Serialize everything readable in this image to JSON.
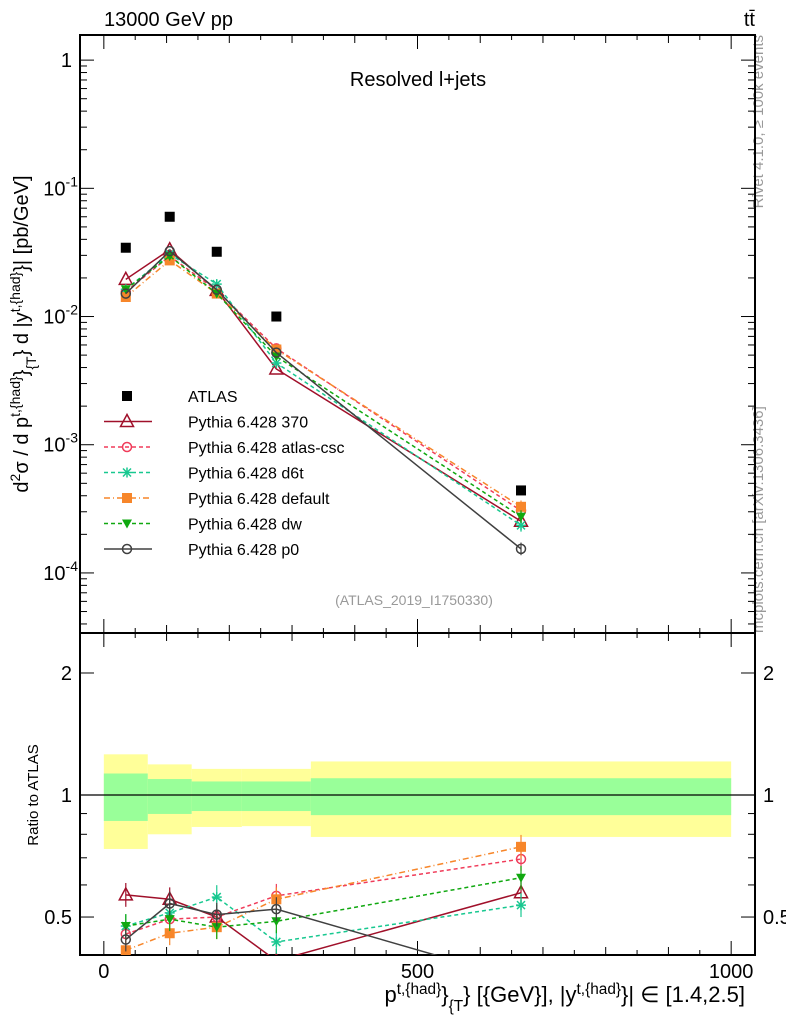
{
  "header": {
    "energy_label": "13000 GeV pp",
    "process_label": "tt̄",
    "side_label_top": "Rivet 4.1.0, ≥ 100k events",
    "side_label_bottom": "mcplots.cern.ch [arXiv:1306.3436]"
  },
  "chart_data": [
    {
      "type": "line",
      "title": "Resolved l+jets",
      "analysis_label": "(ATLAS_2019_I1750330)",
      "ylabel_segments": [
        {
          "t": "d",
          "s": "n"
        },
        {
          "t": "2",
          "s": "sup"
        },
        {
          "t": "σ / d p",
          "s": "n"
        },
        {
          "t": "t,{had}",
          "s": "sup"
        },
        {
          "t": "}",
          "s": "n"
        },
        {
          "t": "{T",
          "s": "sub"
        },
        {
          "t": "} d |y",
          "s": "n"
        },
        {
          "t": "t,{had}",
          "s": "sup"
        },
        {
          "t": "}| [pb/GeV]",
          "s": "n"
        }
      ],
      "yscale": "log",
      "ylim": [
        3.4e-05,
        1.57
      ],
      "xlim": [
        -38,
        1038
      ],
      "y_ticks": [
        {
          "v": 1,
          "label": "1",
          "exp": ""
        },
        {
          "v": 0.1,
          "label": "10",
          "exp": "-1"
        },
        {
          "v": 0.01,
          "label": "10",
          "exp": "-2"
        },
        {
          "v": 0.001,
          "label": "10",
          "exp": "-3"
        },
        {
          "v": 0.0001,
          "label": "10",
          "exp": "-4"
        }
      ],
      "x": [
        35,
        105,
        180,
        275,
        665
      ],
      "bin_edges": [
        0,
        70,
        140,
        220,
        330,
        1000
      ],
      "legend_position": "center-left",
      "series": [
        {
          "name": "ATLAS",
          "color": "#000000",
          "marker": "square-filled",
          "dash": "none",
          "values": [
            0.0344,
            0.06,
            0.032,
            0.01,
            0.00044
          ]
        },
        {
          "name": "Pythia 6.428 370",
          "color": "#a0102a",
          "marker": "triangle-open",
          "dash": "solid",
          "values": [
            0.0195,
            0.0332,
            0.016,
            0.0039,
            0.000253
          ]
        },
        {
          "name": "Pythia 6.428 atlas-csc",
          "color": "#f03c5a",
          "marker": "circle-open",
          "dash": "4,3",
          "values": [
            0.0156,
            0.0296,
            0.016,
            0.00564,
            0.000306
          ]
        },
        {
          "name": "Pythia 6.428 d6t",
          "color": "#18c890",
          "marker": "star",
          "dash": "4,3",
          "values": [
            0.0163,
            0.0307,
            0.0179,
            0.00434,
            0.000235
          ]
        },
        {
          "name": "Pythia 6.428 default",
          "color": "#f7862a",
          "marker": "square-filled",
          "dash": "6,3,1,3",
          "values": [
            0.0142,
            0.0274,
            0.0151,
            0.00553,
            0.000328
          ]
        },
        {
          "name": "Pythia 6.428 dw",
          "color": "#10a810",
          "marker": "triangle-down-filled",
          "dash": "4,3",
          "values": [
            0.0163,
            0.0296,
            0.0151,
            0.00488,
            0.000275
          ]
        },
        {
          "name": "Pythia 6.428 p0",
          "color": "#404040",
          "marker": "circle-open",
          "dash": "solid",
          "values": [
            0.0151,
            0.0324,
            0.0162,
            0.00523,
            0.000154
          ]
        }
      ]
    },
    {
      "type": "line",
      "ylabel": "Ratio to ATLAS",
      "xlabel_segments": [
        {
          "t": "p",
          "s": "n"
        },
        {
          "t": "t,{had}",
          "s": "sup"
        },
        {
          "t": "}",
          "s": "n"
        },
        {
          "t": "{T",
          "s": "sub"
        },
        {
          "t": "} [{GeV}], |y",
          "s": "n"
        },
        {
          "t": "t,{had}",
          "s": "sup"
        },
        {
          "t": "}| ∈ [1.4,2.5]",
          "s": "n"
        }
      ],
      "yscale": "log",
      "ylim": [
        0.403,
        2.51
      ],
      "y_ticks": [
        {
          "v": 2,
          "label": "2"
        },
        {
          "v": 1,
          "label": "1"
        },
        {
          "v": 0.5,
          "label": "0.5"
        }
      ],
      "x_ticks": [
        {
          "v": 0,
          "label": "0"
        },
        {
          "v": 500,
          "label": "500"
        },
        {
          "v": 1000,
          "label": "1000"
        }
      ],
      "band_inner": {
        "color": "#99ff99",
        "low": [
          0.863,
          0.898,
          0.913,
          0.913,
          0.892
        ],
        "high": [
          1.13,
          1.095,
          1.08,
          1.08,
          1.1
        ]
      },
      "band_outer": {
        "color": "#ffff99",
        "low": [
          0.736,
          0.8,
          0.834,
          0.838,
          0.788
        ],
        "high": [
          1.26,
          1.19,
          1.16,
          1.16,
          1.21
        ]
      },
      "series": [
        {
          "name": "Pythia 6.428 370",
          "values": [
            0.567,
            0.553,
            0.5,
            0.39,
            0.574
          ]
        },
        {
          "name": "Pythia 6.428 atlas-csc",
          "values": [
            0.454,
            0.494,
            0.5,
            0.564,
            0.695
          ]
        },
        {
          "name": "Pythia 6.428 d6t",
          "values": [
            0.475,
            0.512,
            0.56,
            0.434,
            0.535
          ]
        },
        {
          "name": "Pythia 6.428 default",
          "values": [
            0.414,
            0.456,
            0.472,
            0.553,
            0.745
          ]
        },
        {
          "name": "Pythia 6.428 dw",
          "values": [
            0.475,
            0.494,
            0.472,
            0.488,
            0.625
          ]
        },
        {
          "name": "Pythia 6.428 p0",
          "values": [
            0.44,
            0.54,
            0.507,
            0.523,
            0.35
          ]
        }
      ]
    }
  ]
}
